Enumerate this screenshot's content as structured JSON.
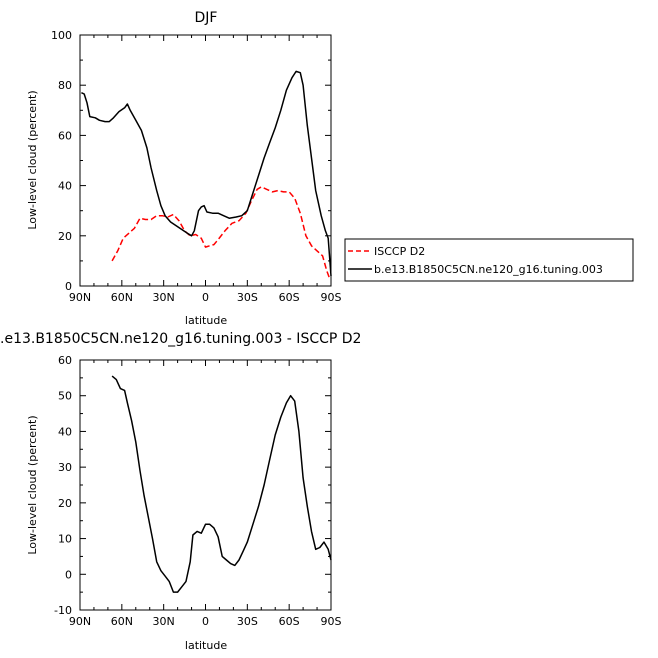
{
  "chart_data": [
    {
      "type": "line",
      "title": "DJF",
      "xlabel": "latitude",
      "ylabel": "Low-level cloud (percent)",
      "xlim": [
        -90,
        90
      ],
      "ylim": [
        0,
        100
      ],
      "xticks": [
        -90,
        -60,
        -30,
        0,
        30,
        60,
        90
      ],
      "xtick_labels": [
        "90N",
        "60N",
        "30N",
        "0",
        "30S",
        "60S",
        "90S"
      ],
      "yticks": [
        0,
        20,
        40,
        60,
        80,
        100
      ],
      "ytick_labels": [
        "0",
        "20",
        "40",
        "60",
        "80",
        "100"
      ],
      "legend_position": "right",
      "series": [
        {
          "name": "ISCCP D2",
          "color": "#ff0000",
          "dash": "dashed",
          "points": [
            [
              -67,
              10
            ],
            [
              -63,
              14
            ],
            [
              -59,
              19
            ],
            [
              -55,
              21
            ],
            [
              -51,
              23
            ],
            [
              -47,
              27
            ],
            [
              -43,
              26.5
            ],
            [
              -39,
              26.5
            ],
            [
              -35,
              28
            ],
            [
              -31,
              28
            ],
            [
              -27,
              27.5
            ],
            [
              -23,
              28.5
            ],
            [
              -19,
              26
            ],
            [
              -15,
              22
            ],
            [
              -11,
              20
            ],
            [
              -7,
              20.5
            ],
            [
              -3,
              19
            ],
            [
              0,
              15.5
            ],
            [
              3,
              16
            ],
            [
              6,
              16.5
            ],
            [
              9,
              18.5
            ],
            [
              14,
              22
            ],
            [
              19,
              25
            ],
            [
              24,
              26
            ],
            [
              29,
              29
            ],
            [
              33,
              34
            ],
            [
              37,
              38.5
            ],
            [
              40,
              39.5
            ],
            [
              44,
              38.5
            ],
            [
              48,
              37.5
            ],
            [
              52,
              38
            ],
            [
              56,
              37.5
            ],
            [
              60,
              37.5
            ],
            [
              64,
              35
            ],
            [
              68,
              29
            ],
            [
              72,
              20
            ],
            [
              76,
              16
            ],
            [
              80,
              14
            ],
            [
              84,
              12
            ],
            [
              87,
              6
            ],
            [
              89,
              3
            ]
          ]
        },
        {
          "name": "b.e13.B1850C5CN.ne120_g16.tuning.003",
          "color": "#000000",
          "dash": "solid",
          "points": [
            [
              -89,
              77
            ],
            [
              -87,
              76.5
            ],
            [
              -85,
              73
            ],
            [
              -83,
              67.5
            ],
            [
              -79,
              67
            ],
            [
              -76,
              66
            ],
            [
              -72,
              65.5
            ],
            [
              -69,
              65.5
            ],
            [
              -66,
              67
            ],
            [
              -62,
              69.5
            ],
            [
              -58,
              71
            ],
            [
              -56,
              72.5
            ],
            [
              -54,
              70
            ],
            [
              -50,
              66
            ],
            [
              -46,
              62
            ],
            [
              -42,
              55
            ],
            [
              -39,
              47
            ],
            [
              -35,
              38
            ],
            [
              -32,
              32
            ],
            [
              -29,
              28
            ],
            [
              -25,
              25.5
            ],
            [
              -21,
              24
            ],
            [
              -17,
              22.5
            ],
            [
              -13,
              21
            ],
            [
              -10,
              20
            ],
            [
              -8,
              22
            ],
            [
              -5,
              30
            ],
            [
              -3,
              31.5
            ],
            [
              -1,
              32
            ],
            [
              1,
              29.5
            ],
            [
              5,
              29
            ],
            [
              9,
              29
            ],
            [
              13,
              28
            ],
            [
              17,
              27
            ],
            [
              22,
              27.5
            ],
            [
              26,
              28
            ],
            [
              30,
              30
            ],
            [
              34,
              37
            ],
            [
              38,
              44
            ],
            [
              42,
              51
            ],
            [
              46,
              57
            ],
            [
              50,
              63
            ],
            [
              54,
              70
            ],
            [
              58,
              78
            ],
            [
              62,
              83
            ],
            [
              65,
              85.5
            ],
            [
              68,
              85
            ],
            [
              70,
              80
            ],
            [
              73,
              64
            ],
            [
              76,
              51
            ],
            [
              79,
              38
            ],
            [
              83,
              28
            ],
            [
              86,
              22
            ],
            [
              88,
              19
            ],
            [
              90,
              4
            ]
          ]
        }
      ]
    },
    {
      "type": "line",
      "title": ".e13.B1850C5CN.ne120_g16.tuning.003 - ISCCP D2",
      "xlabel": "latitude",
      "ylabel": "Low-level cloud (percent)",
      "xlim": [
        -90,
        90
      ],
      "ylim": [
        -10,
        60
      ],
      "xticks": [
        -90,
        -60,
        -30,
        0,
        30,
        60,
        90
      ],
      "xtick_labels": [
        "90N",
        "60N",
        "30N",
        "0",
        "30S",
        "60S",
        "90S"
      ],
      "yticks": [
        -10,
        0,
        10,
        20,
        30,
        40,
        50,
        60
      ],
      "ytick_labels": [
        "-10",
        "0",
        "10",
        "20",
        "30",
        "40",
        "50",
        "60"
      ],
      "series": [
        {
          "color": "#000000",
          "dash": "solid",
          "points": [
            [
              -67,
              55.5
            ],
            [
              -64,
              54.5
            ],
            [
              -61,
              52
            ],
            [
              -58,
              51.5
            ],
            [
              -56,
              48
            ],
            [
              -53,
              43
            ],
            [
              -50,
              37
            ],
            [
              -47,
              29
            ],
            [
              -44,
              22
            ],
            [
              -41,
              16
            ],
            [
              -38,
              10
            ],
            [
              -35,
              3.5
            ],
            [
              -32,
              1
            ],
            [
              -29,
              -0.5
            ],
            [
              -26,
              -2
            ],
            [
              -23,
              -5
            ],
            [
              -20,
              -5
            ],
            [
              -17,
              -3.5
            ],
            [
              -14,
              -2
            ],
            [
              -11,
              3.5
            ],
            [
              -9,
              11
            ],
            [
              -6,
              12
            ],
            [
              -3,
              11.5
            ],
            [
              0,
              14
            ],
            [
              3,
              14
            ],
            [
              6,
              13
            ],
            [
              9,
              10.5
            ],
            [
              12,
              5
            ],
            [
              15,
              4
            ],
            [
              18,
              3
            ],
            [
              21,
              2.5
            ],
            [
              24,
              4
            ],
            [
              27,
              6.5
            ],
            [
              30,
              9
            ],
            [
              34,
              14
            ],
            [
              38,
              19
            ],
            [
              42,
              25
            ],
            [
              46,
              32
            ],
            [
              50,
              39
            ],
            [
              54,
              44
            ],
            [
              58,
              48
            ],
            [
              61,
              50
            ],
            [
              64,
              48.5
            ],
            [
              67,
              40
            ],
            [
              70,
              27
            ],
            [
              73,
              19
            ],
            [
              76,
              12
            ],
            [
              79,
              7
            ],
            [
              82,
              7.5
            ],
            [
              85,
              9
            ],
            [
              88,
              7
            ],
            [
              90,
              4
            ]
          ]
        }
      ]
    }
  ]
}
